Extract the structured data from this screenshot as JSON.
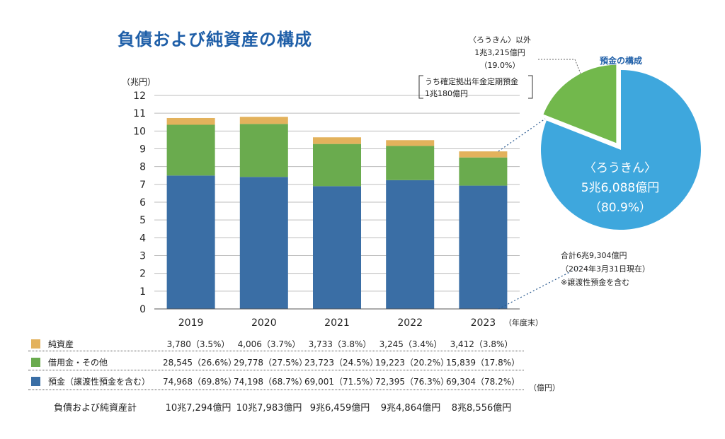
{
  "title": "負債および純資産の構成",
  "colors": {
    "deposits": "#3a6ea5",
    "borrowings": "#6aab4e",
    "net_assets": "#e3b25c",
    "pie_main": "#3ea7dd",
    "pie_other": "#72b84c",
    "title": "#1f5fa8"
  },
  "chart_data": [
    {
      "type": "bar",
      "stacked": true,
      "ylabel": "（兆円）",
      "xlabel": "（年度末）",
      "ylim": [
        0,
        12
      ],
      "yticks": [
        0,
        1,
        2,
        3,
        4,
        5,
        6,
        7,
        8,
        9,
        10,
        11,
        12
      ],
      "grid": true,
      "categories": [
        "2019",
        "2020",
        "2021",
        "2022",
        "2023"
      ],
      "series": [
        {
          "name": "預金（譲渡性預金を含む）",
          "values": [
            7.4968,
            7.4198,
            6.9001,
            7.2395,
            6.9304
          ]
        },
        {
          "name": "借用金・その他",
          "values": [
            2.8545,
            2.9778,
            2.3723,
            1.9223,
            1.5839
          ]
        },
        {
          "name": "純資産",
          "values": [
            0.378,
            0.4006,
            0.3733,
            0.3245,
            0.3412
          ]
        }
      ]
    },
    {
      "type": "pie",
      "title": "預金の構成",
      "slices": [
        {
          "name": "〈ろうきん〉",
          "amount": "5兆6,088億円",
          "pct_label": "（80.9%）",
          "value": 80.9
        },
        {
          "name": "〈ろうきん〉以外",
          "amount": "1兆3,215億円",
          "pct_label": "（19.0%）",
          "value": 19.0
        }
      ]
    }
  ],
  "callouts": {
    "other_name": "〈ろうきん〉以外",
    "other_amount": "1兆3,215億円",
    "other_pct": "（19.0%）",
    "fixed_line1": "うち確定拠出年金定期預金",
    "fixed_line2": "1兆180億円",
    "main_name": "〈ろうきん〉",
    "main_amount": "5兆6,088億円",
    "main_pct": "（80.9%）",
    "total_line1": "合計6兆9,304億円",
    "total_line2": "（2024年3月31日現在）",
    "total_line3": "※譲渡性預金を含む"
  },
  "table": {
    "unit": "（億円）",
    "rows": [
      {
        "label": "純資産",
        "values": [
          "3,780（3.5%）",
          "4,006（3.7%）",
          "3,733（3.8%）",
          "3,245（3.4%）",
          "3,412（3.8%）"
        ]
      },
      {
        "label": "借用金・その他",
        "values": [
          "28,545（26.6%）",
          "29,778（27.5%）",
          "23,723（24.5%）",
          "19,223（20.2%）",
          "15,839（17.8%）"
        ]
      },
      {
        "label": "預金（譲渡性預金を含む）",
        "values": [
          "74,968（69.8%）",
          "74,198（68.7%）",
          "69,001（71.5%）",
          "72,395（76.3%）",
          "69,304（78.2%）"
        ]
      }
    ],
    "total_label": "負債および純資産計",
    "totals": [
      "10兆7,294億円",
      "10兆7,983億円",
      "9兆6,459億円",
      "9兆4,864億円",
      "8兆8,556億円"
    ]
  }
}
